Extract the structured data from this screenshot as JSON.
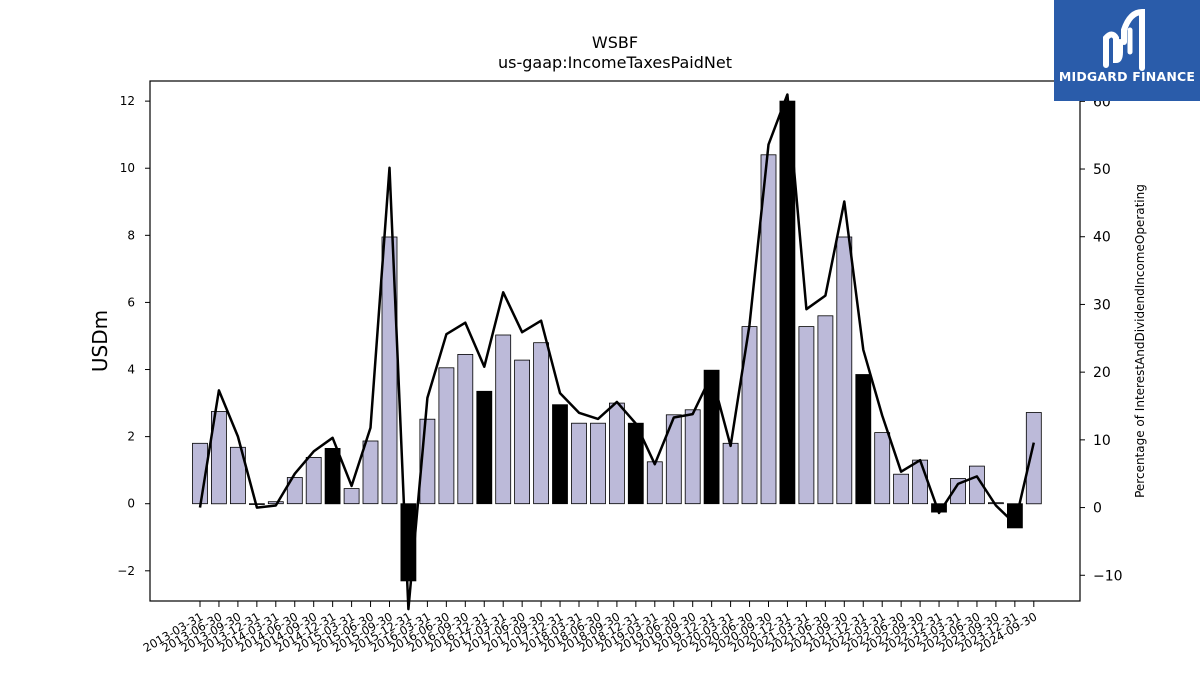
{
  "brand": {
    "name": "MIDGARD FINANCE",
    "icon": "midgard-logo-icon",
    "background": "#2a5caa"
  },
  "chart_data": {
    "type": "bar",
    "title": "WSBF",
    "subtitle": "us-gaap:IncomeTaxesPaidNet",
    "ylabel": "USDm",
    "y2label": "Percentage of InterestAndDividendIncomeOperating",
    "ylim": [
      -2.9,
      12.6
    ],
    "y2lim": [
      -13.8,
      63.0
    ],
    "yticks": [
      -2,
      0,
      2,
      4,
      6,
      8,
      10,
      12
    ],
    "y2ticks": [
      -10,
      0,
      10,
      20,
      30,
      40,
      50,
      60
    ],
    "bar_color": "#bcbad9",
    "highlight_color": "#000000",
    "line_color": "#000000",
    "categories": [
      "2013-03-31",
      "2013-06-30",
      "2013-09-30",
      "2013-12-31",
      "2014-03-31",
      "2014-06-30",
      "2014-09-30",
      "2014-12-31",
      "2015-03-31",
      "2015-06-30",
      "2015-09-30",
      "2015-12-31",
      "2016-03-31",
      "2016-06-30",
      "2016-09-30",
      "2016-12-31",
      "2017-03-31",
      "2017-06-30",
      "2017-09-30",
      "2017-12-31",
      "2018-03-31",
      "2018-06-30",
      "2018-09-30",
      "2018-12-31",
      "2019-03-31",
      "2019-06-30",
      "2019-09-30",
      "2019-12-31",
      "2020-03-31",
      "2020-06-30",
      "2020-09-30",
      "2020-12-31",
      "2021-03-31",
      "2021-06-30",
      "2021-09-30",
      "2021-12-31",
      "2022-03-31",
      "2022-06-30",
      "2022-09-30",
      "2022-12-31",
      "2023-03-31",
      "2023-06-30",
      "2023-09-30",
      "2023-12-31",
      "2024-09-30"
    ],
    "values": [
      1.8,
      2.75,
      1.68,
      0.0,
      0.06,
      0.78,
      1.38,
      1.65,
      0.45,
      1.87,
      7.95,
      -2.3,
      2.52,
      4.05,
      4.45,
      3.35,
      5.03,
      4.28,
      4.8,
      2.95,
      2.4,
      2.4,
      3.0,
      2.4,
      1.25,
      2.65,
      2.8,
      3.98,
      1.8,
      5.28,
      10.4,
      12.0,
      5.28,
      5.6,
      7.95,
      3.85,
      2.12,
      0.88,
      1.3,
      -0.25,
      0.75,
      1.12,
      0.03,
      -0.72,
      2.72
    ],
    "highlighted": [
      false,
      false,
      false,
      false,
      false,
      false,
      false,
      true,
      false,
      false,
      false,
      true,
      false,
      false,
      false,
      true,
      false,
      false,
      false,
      true,
      false,
      false,
      false,
      true,
      false,
      false,
      false,
      true,
      false,
      false,
      false,
      true,
      false,
      false,
      false,
      true,
      false,
      false,
      false,
      true,
      false,
      false,
      false,
      true,
      false
    ],
    "line_values": [
      0.0,
      17.3,
      10.5,
      0.0,
      0.3,
      5.0,
      8.3,
      10.3,
      3.2,
      11.8,
      50.2,
      -15.0,
      16.2,
      25.6,
      27.3,
      20.8,
      31.8,
      25.9,
      27.6,
      16.9,
      14.0,
      13.1,
      15.6,
      12.4,
      6.4,
      13.3,
      13.8,
      19.6,
      9.1,
      27.0,
      53.6,
      61.0,
      29.3,
      31.3,
      45.2,
      23.3,
      13.6,
      5.3,
      7.0,
      -0.8,
      3.5,
      4.6,
      0.3,
      -2.4,
      9.6
    ]
  }
}
